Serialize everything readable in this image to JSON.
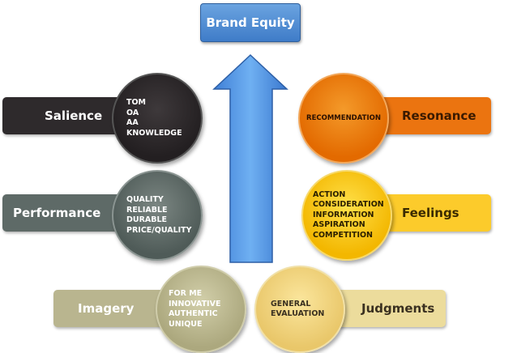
{
  "title": "Brand Equity",
  "levels": {
    "salience": {
      "label": "Salience",
      "items": [
        "TOM",
        "OA",
        "AA",
        "KNOWLEDGE"
      ],
      "color": "#2e2a2c"
    },
    "performance": {
      "label": "Performance",
      "items": [
        "QUALITY",
        "RELIABLE",
        "DURABLE",
        "PRICE/QUALITY"
      ],
      "color": "#5e6a67"
    },
    "imagery": {
      "label": "Imagery",
      "items": [
        "FOR ME",
        "INNOVATIVE",
        "AUTHENTIC",
        "UNIQUE"
      ],
      "color": "#b9b58f"
    },
    "judgments": {
      "label": "Judgments",
      "items": [
        "GENERAL",
        "EVALUATION"
      ],
      "color": "#ecdc9c"
    },
    "feelings": {
      "label": "Feelings",
      "items": [
        "ACTION",
        "CONSIDERATION",
        "INFORMATION",
        "ASPIRATION",
        "COMPETITION"
      ],
      "color": "#fccb2b"
    },
    "resonance": {
      "label": "Resonance",
      "items": [
        "RECOMMENDATION"
      ],
      "color": "#eb7410"
    }
  },
  "arrow": {
    "icon": "up-arrow-icon",
    "color": "#4a8fe0"
  }
}
